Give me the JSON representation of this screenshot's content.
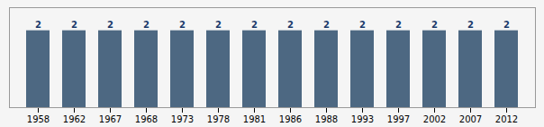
{
  "chart_data": {
    "type": "bar",
    "categories": [
      "1958",
      "1962",
      "1967",
      "1968",
      "1973",
      "1978",
      "1981",
      "1986",
      "1988",
      "1993",
      "1997",
      "2002",
      "2007",
      "2012"
    ],
    "values": [
      2,
      2,
      2,
      2,
      2,
      2,
      2,
      2,
      2,
      2,
      2,
      2,
      2,
      2
    ],
    "color": "#4d6882",
    "ylim": [
      0,
      2.6
    ],
    "data_labels": true,
    "tick_labels": "x"
  }
}
